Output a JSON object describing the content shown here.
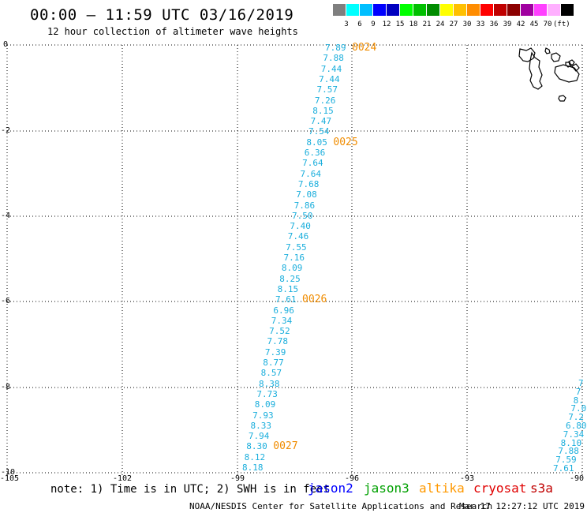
{
  "header": {
    "title": "00:00 – 11:59 UTC 03/16/2019",
    "subtitle": "12 hour collection of altimeter wave heights"
  },
  "legend": {
    "colors": [
      "#7f7f7f",
      "#00ffff",
      "#00bfff",
      "#0000ff",
      "#0000c0",
      "#00ff00",
      "#00c000",
      "#008c00",
      "#ffff00",
      "#ffc000",
      "#ff8c00",
      "#ff0000",
      "#c00000",
      "#8c0000",
      "#a000a0",
      "#ff40ff",
      "#ffb0ff",
      "#000000"
    ],
    "labels": [
      "3",
      "6",
      "9",
      "12",
      "15",
      "18",
      "21",
      "24",
      "27",
      "30",
      "33",
      "36",
      "39",
      "42",
      "45",
      "70",
      "(ft)"
    ]
  },
  "axes": {
    "y_ticks": [
      "0",
      "-2",
      "-4",
      "-6",
      "-8",
      "-10"
    ],
    "x_ticks": [
      "-105",
      "-102",
      "-99",
      "-96",
      "-93",
      "-90"
    ]
  },
  "tracks": [
    {
      "color": "#1aaedc",
      "heights": [
        "7.89",
        "7.88",
        "7.44",
        "7.44",
        "7.57",
        "7.26",
        "8.15",
        "7.47",
        "7.54",
        "8.05",
        "6.36",
        "7.64",
        "7.64",
        "7.68",
        "7.08",
        "7.86",
        "7.50",
        "7.40",
        "7.46",
        "7.55",
        "7.16",
        "8.09",
        "8.25",
        "8.15",
        "7.61",
        "6.96",
        "7.34",
        "7.52",
        "7.78",
        "7.39",
        "8.77",
        "8.57",
        "8.38",
        "7.73",
        "8.09",
        "7.93",
        "8.33",
        "7.94",
        "8.30",
        "8.12",
        "8.18"
      ],
      "time_labels": [
        {
          "text": "0024",
          "index": 0
        },
        {
          "text": "0025",
          "index": 9
        },
        {
          "text": "0026",
          "index": 24
        },
        {
          "text": "0027",
          "index": 38
        }
      ]
    },
    {
      "color": "#1aaedc",
      "heights": [
        "7",
        "7",
        "8.",
        "7.0",
        "7.2",
        "6.80",
        "7.34",
        "8.10",
        "7.88",
        "7.59",
        "7.61"
      ]
    }
  ],
  "footer": {
    "note": "note: 1) Time is in UTC; 2) SWH is in feet",
    "satellites": [
      {
        "name": "jason2",
        "color": "#0000ff"
      },
      {
        "name": "jason3",
        "color": "#00a000"
      },
      {
        "name": "altika",
        "color": "#ff9900"
      },
      {
        "name": "cryosat",
        "color": "#e00000"
      },
      {
        "name": "s3a",
        "color": "#c00000"
      }
    ],
    "credit": "NOAA/NESDIS Center for Satellite Applications and Research",
    "timestamp": "Mar 17 12:27:12 UTC 2019"
  }
}
